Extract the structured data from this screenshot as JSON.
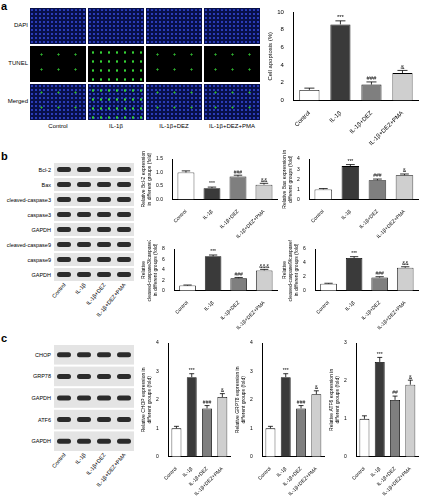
{
  "panels": [
    {
      "letter": "a",
      "image_rows": [
        "DAPI",
        "TUNEL",
        "Merged"
      ],
      "image_columns": [
        "Control",
        "IL-1β",
        "IL-1β+DEZ",
        "IL-1β+DEZ+PMA"
      ]
    },
    {
      "letter": "b",
      "blot_rows": [
        "Bcl-2",
        "Bax",
        "cleaved-caspase3",
        "caspase3",
        "GAPDH",
        "cleaved-caspase9",
        "caspase9",
        "GAPDH"
      ],
      "lanes": [
        "Control",
        "IL-1β",
        "IL-1β+DEZ",
        "IL-1β+DEZ+PMA"
      ]
    },
    {
      "letter": "c",
      "blot_rows": [
        "CHOP",
        "GRP78",
        "GAPDH",
        "ATF6",
        "GAPDH"
      ],
      "lanes": [
        "Control",
        "IL-1β",
        "IL-1β+DEZ",
        "IL-1β+DEZ+PMA"
      ]
    }
  ],
  "chart_data": [
    {
      "type": "bar",
      "ylabel": "Cell apoptosis (%)",
      "categories": [
        "Control",
        "IL-1β",
        "IL-1β+DEZ",
        "IL-1β+DEZ+PMA"
      ],
      "values": [
        1.2,
        8.6,
        1.8,
        3.1
      ],
      "errors": [
        0.2,
        0.4,
        0.3,
        0.3
      ],
      "marks": [
        null,
        "***",
        "###",
        "&"
      ],
      "colors": [
        "#ffffff",
        "#3a3a3a",
        "#7f7f7f",
        "#cfcfcf"
      ],
      "ylim": [
        0,
        10
      ],
      "yticks": [
        0,
        2,
        4,
        6,
        8,
        10
      ],
      "grid": false
    },
    {
      "type": "bar",
      "ylabel": "Relative Bcl-2 expression in different groups (fold)",
      "categories": [
        "Control",
        "IL-1β",
        "IL-1β+DEZ",
        "IL-1β+DEZ+PMA"
      ],
      "values": [
        1.0,
        0.42,
        0.85,
        0.55
      ],
      "errors": [
        0.06,
        0.04,
        0.05,
        0.05
      ],
      "marks": [
        null,
        "***",
        "###",
        "&&"
      ],
      "colors": [
        "#ffffff",
        "#3a3a3a",
        "#7f7f7f",
        "#cfcfcf"
      ],
      "ylim": [
        0,
        1.5
      ],
      "yticks": [
        {
          "value": 0,
          "label": "0.0"
        },
        {
          "value": 0.5,
          "label": "0.5"
        },
        {
          "value": 1,
          "label": "1.0"
        },
        {
          "value": 1.5,
          "label": "1.5"
        }
      ],
      "grid": false
    },
    {
      "type": "bar",
      "ylabel": "Relative Bax expression in different groups (fold)",
      "categories": [
        "Control",
        "IL-1β",
        "IL-1β+DEZ",
        "IL-1β+DEZ+PMA"
      ],
      "values": [
        1.0,
        3.3,
        1.9,
        2.4
      ],
      "errors": [
        0.08,
        0.15,
        0.12,
        0.12
      ],
      "marks": [
        null,
        "***",
        "###",
        "&"
      ],
      "colors": [
        "#ffffff",
        "#3a3a3a",
        "#7f7f7f",
        "#cfcfcf"
      ],
      "ylim": [
        0,
        4
      ],
      "yticks": [
        0,
        1,
        2,
        3,
        4
      ],
      "grid": false
    },
    {
      "type": "bar",
      "ylabel": "Relative cleaved-caspase3/caspase3 in different groups (fold)",
      "categories": [
        "Control",
        "IL-1β",
        "IL-1β+DEZ",
        "IL-1β+DEZ+PMA"
      ],
      "values": [
        1.0,
        6.6,
        2.4,
        3.9
      ],
      "errors": [
        0.1,
        0.25,
        0.15,
        0.2
      ],
      "marks": [
        null,
        "***",
        "###",
        "&&&"
      ],
      "colors": [
        "#ffffff",
        "#3a3a3a",
        "#7f7f7f",
        "#cfcfcf"
      ],
      "ylim": [
        0,
        8
      ],
      "yticks": [
        0,
        2,
        4,
        6,
        8
      ],
      "grid": false
    },
    {
      "type": "bar",
      "ylabel": "Relative cleaved-caspase9/caspase9 in different groups (fold)",
      "categories": [
        "Control",
        "IL-1β",
        "IL-1β+DEZ",
        "IL-1β+DEZ+PMA"
      ],
      "values": [
        1.0,
        4.7,
        1.9,
        3.3
      ],
      "errors": [
        0.08,
        0.2,
        0.12,
        0.15
      ],
      "marks": [
        null,
        "***",
        "###",
        "&&"
      ],
      "colors": [
        "#ffffff",
        "#3a3a3a",
        "#7f7f7f",
        "#cfcfcf"
      ],
      "ylim": [
        0,
        6
      ],
      "yticks": [
        0,
        2,
        4,
        6
      ],
      "grid": false
    },
    {
      "type": "bar",
      "ylabel": "Relative CHOP expression in different groups (fold)",
      "categories": [
        "Control",
        "IL-1β",
        "IL-1β+DEZ",
        "IL-1β+DEZ+PMA"
      ],
      "values": [
        1.0,
        2.8,
        1.7,
        2.1
      ],
      "errors": [
        0.07,
        0.12,
        0.1,
        0.12
      ],
      "marks": [
        null,
        "***",
        "###",
        "&"
      ],
      "colors": [
        "#ffffff",
        "#3a3a3a",
        "#7f7f7f",
        "#cfcfcf"
      ],
      "ylim": [
        0,
        4
      ],
      "yticks": [
        0,
        1,
        2,
        3,
        4
      ],
      "grid": false
    },
    {
      "type": "bar",
      "ylabel": "Relative GRP78 expression in different groups (fold)",
      "categories": [
        "Control",
        "IL-1β",
        "IL-1β+DEZ",
        "IL-1β+DEZ+PMA"
      ],
      "values": [
        1.0,
        2.8,
        1.7,
        2.2
      ],
      "errors": [
        0.07,
        0.12,
        0.1,
        0.12
      ],
      "marks": [
        null,
        "***",
        "###",
        "&"
      ],
      "colors": [
        "#ffffff",
        "#3a3a3a",
        "#7f7f7f",
        "#cfcfcf"
      ],
      "ylim": [
        0,
        4
      ],
      "yticks": [
        0,
        1,
        2,
        3,
        4
      ],
      "grid": false
    },
    {
      "type": "bar",
      "ylabel": "Relative ATF6 expression in different groups (fold)",
      "categories": [
        "Control",
        "IL-1β",
        "IL-1β+DEZ",
        "IL-1β+DEZ+PMA"
      ],
      "values": [
        1.0,
        2.5,
        1.5,
        1.9
      ],
      "errors": [
        0.08,
        0.12,
        0.1,
        0.12
      ],
      "marks": [
        null,
        "***",
        "##",
        "&"
      ],
      "colors": [
        "#ffffff",
        "#3a3a3a",
        "#7f7f7f",
        "#cfcfcf"
      ],
      "ylim": [
        0,
        3
      ],
      "yticks": [
        0,
        1,
        2,
        3
      ],
      "grid": false
    }
  ]
}
